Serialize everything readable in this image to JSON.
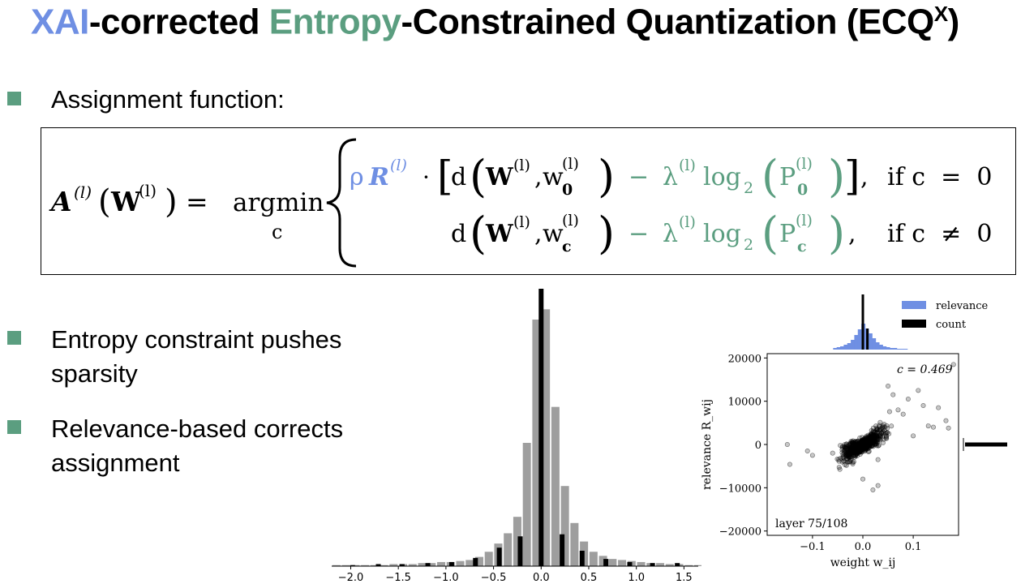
{
  "colors": {
    "blue": "#6f8fe3",
    "green": "#5b9e80",
    "bullet": "#5b9e80",
    "gray_bar": "#9e9e9e",
    "black_bar": "#000000"
  },
  "title": {
    "part1": "XAI",
    "part2": "-corrected ",
    "part3": "Entropy",
    "part4": "-Constrained Quantization (ECQ",
    "sup": "X",
    "part5": ")"
  },
  "bullets": [
    {
      "text": "Assignment function:"
    },
    {
      "text_line1": "Entropy constraint pushes",
      "text_line2": "sparsity"
    },
    {
      "text_line1": "Relevance-based corrects",
      "text_line2": "assignment"
    }
  ],
  "formula": {
    "lhs_A": "A",
    "lhs_sup": "(l)",
    "lhs_arg": "W",
    "lhs_arg_sup": "(l)",
    "equals": "=",
    "argmin": "argmin",
    "argmin_sub": "c",
    "row1": {
      "rho": "ρ",
      "R": "R",
      "R_sup": "(l)",
      "dot": "·",
      "d": "d",
      "W": "W",
      "W_sup": "(l)",
      "w": "w",
      "w_sup": "(l)",
      "w_sub": "0",
      "minus": "−",
      "lambda": "λ",
      "lambda_sup": "(l)",
      "log": "log",
      "log_sub": "2",
      "P": "P",
      "P_sup": "(l)",
      "P_sub": "0",
      "cond": "if c  =  0"
    },
    "row2": {
      "d": "d",
      "W": "W",
      "W_sup": "(l)",
      "w": "w",
      "w_sup": "(l)",
      "w_sub": "c",
      "minus": "−",
      "lambda": "λ",
      "lambda_sup": "(l)",
      "log": "log",
      "log_sub": "2",
      "P": "P",
      "P_sup": "(l)",
      "P_sub": "c",
      "cond": "if c  ≠  0"
    }
  },
  "chart_data": [
    {
      "type": "bar",
      "title": "",
      "xlabel": "",
      "ylabel": "",
      "xlim": [
        -2.2,
        1.65
      ],
      "x_ticks": [
        "−2.0",
        "−1.5",
        "−1.0",
        "−0.5",
        "0.0",
        "0.5",
        "1.0",
        "1.5"
      ],
      "x_tick_values": [
        -2.0,
        -1.5,
        -1.0,
        -0.5,
        0.0,
        0.5,
        1.0,
        1.5
      ],
      "series": [
        {
          "values_x": [
            -2.15,
            -2.05,
            -1.95,
            -1.85,
            -1.75,
            -1.65,
            -1.55,
            -1.45,
            -1.35,
            -1.25,
            -1.15,
            -1.05,
            -0.95,
            -0.85,
            -0.75,
            -0.65,
            -0.55,
            -0.45,
            -0.35,
            -0.25,
            -0.15,
            -0.05,
            0.05,
            0.15,
            0.25,
            0.35,
            0.45,
            0.55,
            0.65,
            0.75,
            0.85,
            0.95,
            1.05,
            1.15,
            1.25,
            1.35,
            1.45,
            1.55,
            1.65
          ],
          "values": [
            1,
            1,
            1,
            1,
            1,
            1,
            2,
            2,
            2,
            3,
            3,
            4,
            4,
            5,
            6,
            9,
            14,
            22,
            32,
            48,
            120,
            240,
            250,
            155,
            78,
            42,
            24,
            14,
            10,
            7,
            6,
            5,
            4,
            3,
            3,
            2,
            2,
            1,
            1
          ]
        },
        {
          "values_x": [
            -1.98,
            -1.71,
            -1.46,
            -1.19,
            -0.94,
            -0.69,
            -0.44,
            -0.22,
            0.0,
            0.22,
            0.43,
            0.68,
            0.93,
            1.17,
            1.43
          ],
          "values": [
            1,
            2,
            2,
            3,
            4,
            8,
            18,
            29,
            270,
            31,
            15,
            7,
            4,
            3,
            3
          ]
        }
      ]
    },
    {
      "type": "scatter",
      "xlabel": "weight w_ij",
      "ylabel": "relevance R_wij",
      "annotation": "c = 0.469",
      "layer_label": "layer 75/108",
      "xlim": [
        -0.19,
        0.19
      ],
      "ylim": [
        -21000,
        21000
      ],
      "x_ticks": [
        "−0.1",
        "0.0",
        "0.1"
      ],
      "x_tick_values": [
        -0.1,
        0.0,
        0.1
      ],
      "y_ticks": [
        "20000",
        "10000",
        "0",
        "−10000",
        "−20000"
      ],
      "y_tick_values": [
        20000,
        10000,
        0,
        -10000,
        -20000
      ],
      "legend": [
        "relevance",
        "count"
      ],
      "legend_position": "top-right",
      "legend_colors": [
        "#6f8fe3",
        "#000000"
      ],
      "correlation": 0.469
    }
  ]
}
